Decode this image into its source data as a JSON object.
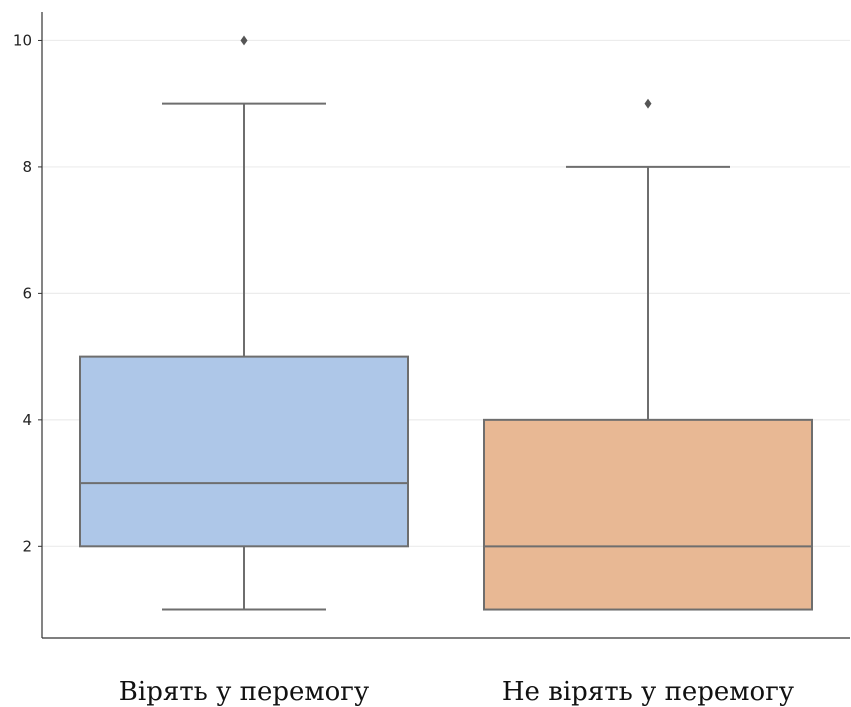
{
  "chart_data": {
    "type": "box",
    "title": "",
    "xlabel": "",
    "ylabel": "",
    "categories": [
      "Вірять у перемогу",
      "Не вірять у перемогу"
    ],
    "boxes": [
      {
        "min": 1,
        "q1": 2,
        "median": 3,
        "q3": 5,
        "max": 9,
        "outliers": [
          10
        ],
        "color": "#aec7e8"
      },
      {
        "min": 1,
        "q1": 1,
        "median": 2,
        "q3": 4,
        "max": 8,
        "outliers": [
          9
        ],
        "color": "#e8b894"
      }
    ],
    "ylim": [
      0.55,
      10.45
    ],
    "yticks": [
      2,
      4,
      6,
      8,
      10
    ],
    "grid": true
  }
}
